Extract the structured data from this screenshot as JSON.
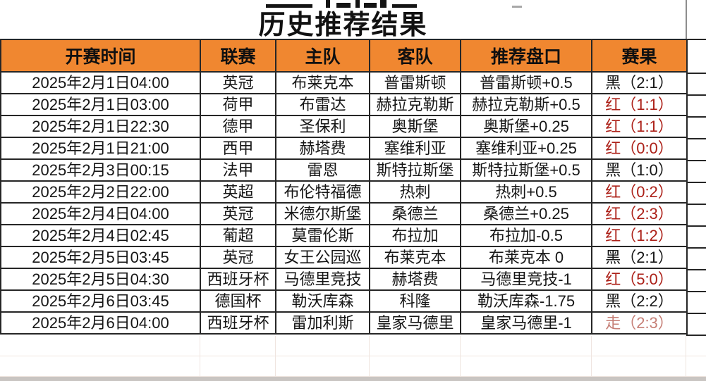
{
  "page": {
    "title": "历史推荐结果"
  },
  "colors": {
    "header_bg": "#F08730",
    "border": "#262626",
    "result_red": "#AC2018",
    "result_black": "#161616",
    "result_push": "#C67F76"
  },
  "table": {
    "columns": [
      {
        "key": "time",
        "label": "开赛时间"
      },
      {
        "key": "league",
        "label": "联赛"
      },
      {
        "key": "home",
        "label": "主队"
      },
      {
        "key": "away",
        "label": "客队"
      },
      {
        "key": "handicap",
        "label": "推荐盘口"
      },
      {
        "key": "result",
        "label": "赛果"
      }
    ],
    "rows": [
      {
        "time": "2025年2月1日04:00",
        "league": "英冠",
        "home": "布莱克本",
        "away": "普雷斯顿",
        "handicap": "普雷斯顿+0.5",
        "result": "黑（2:1）",
        "result_type": "black"
      },
      {
        "time": "2025年2月1日03:00",
        "league": "荷甲",
        "home": "布雷达",
        "away": "赫拉克勒斯",
        "handicap": "赫拉克勒斯+0.5",
        "result": "红（1:1）",
        "result_type": "red"
      },
      {
        "time": "2025年2月1日22:30",
        "league": "德甲",
        "home": "圣保利",
        "away": "奥斯堡",
        "handicap": "奥斯堡+0.25",
        "result": "红（1:1）",
        "result_type": "red"
      },
      {
        "time": "2025年2月1日21:00",
        "league": "西甲",
        "home": "赫塔费",
        "away": "塞维利亚",
        "handicap": "塞维利亚+0.25",
        "result": "红（0:0）",
        "result_type": "red"
      },
      {
        "time": "2025年2月3日00:15",
        "league": "法甲",
        "home": "雷恩",
        "away": "斯特拉斯堡",
        "handicap": "斯特拉斯堡+0.5",
        "result": "黑（1:0）",
        "result_type": "black"
      },
      {
        "time": "2025年2月2日22:00",
        "league": "英超",
        "home": "布伦特福德",
        "away": "热刺",
        "handicap": "热刺+0.5",
        "result": "红（0:2）",
        "result_type": "red"
      },
      {
        "time": "2025年2月4日04:00",
        "league": "英冠",
        "home": "米德尔斯堡",
        "away": "桑德兰",
        "handicap": "桑德兰+0.25",
        "result": "红（2:3）",
        "result_type": "red"
      },
      {
        "time": "2025年2月4日02:45",
        "league": "葡超",
        "home": "莫雷伦斯",
        "away": "布拉加",
        "handicap": "布拉加-0.5",
        "result": "红（1:2）",
        "result_type": "red"
      },
      {
        "time": "2025年2月5日03:45",
        "league": "英冠",
        "home": "女王公园巡",
        "away": "布莱克本",
        "handicap": "布莱克本 0",
        "result": "黑（2:1）",
        "result_type": "black"
      },
      {
        "time": "2025年2月5日04:30",
        "league": "西班牙杯",
        "home": "马德里竞技",
        "away": "赫塔费",
        "handicap": "马德里竞技-1",
        "result": "红（5:0）",
        "result_type": "red"
      },
      {
        "time": "2025年2月6日03:45",
        "league": "德国杯",
        "home": "勒沃库森",
        "away": "科隆",
        "handicap": "勒沃库森-1.75",
        "result": "黑（2:2）",
        "result_type": "black"
      },
      {
        "time": "2025年2月6日04:00",
        "league": "西班牙杯",
        "home": "雷加利斯",
        "away": "皇家马德里",
        "handicap": "皇家马德里-1",
        "result": "走（2:3）",
        "result_type": "push"
      }
    ]
  }
}
